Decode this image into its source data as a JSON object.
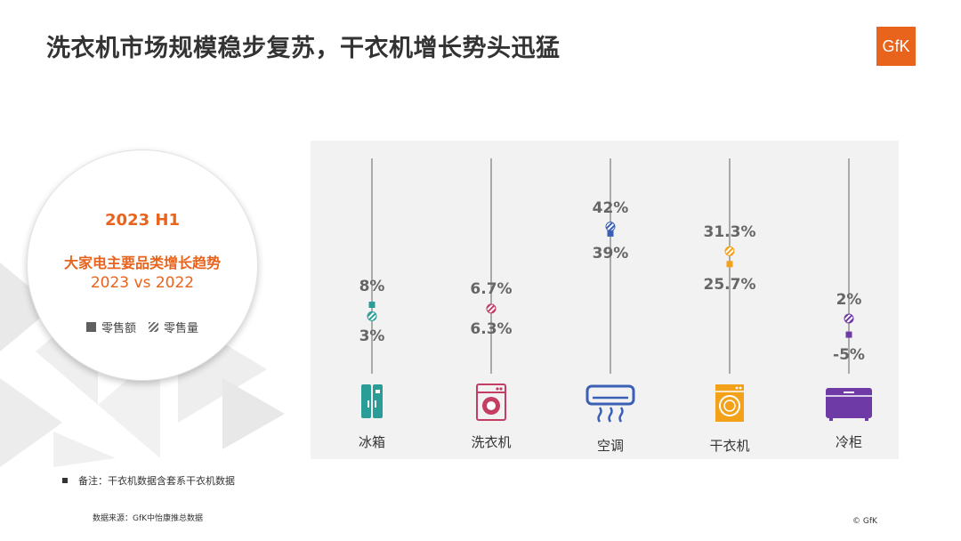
{
  "header": {
    "title": "洗衣机市场规模稳步复苏，干衣机增长势头迅猛",
    "logo": "GfK"
  },
  "summary": {
    "period": "2023 H1",
    "subtitle": "大家电主要品类增长趋势",
    "comparison": "2023 vs 2022",
    "legend": {
      "value": "零售额",
      "volume": "零售量"
    }
  },
  "chart_data": {
    "type": "scatter",
    "title": "",
    "xlabel": "",
    "ylabel": "",
    "categories": [
      "冰箱",
      "洗衣机",
      "空调",
      "干衣机",
      "冷柜"
    ],
    "series": [
      {
        "name": "零售额",
        "values": [
          8,
          6.7,
          39,
          25.7,
          -5
        ],
        "labels": [
          "8%",
          "6.7%",
          "39%",
          "25.7%",
          "-5%"
        ]
      },
      {
        "name": "零售量",
        "values": [
          3,
          6.3,
          42,
          31.3,
          2
        ],
        "labels": [
          "3%",
          "6.3%",
          "42%",
          "31.3%",
          "2%"
        ]
      }
    ],
    "colors": [
      "#2a9d96",
      "#c43d63",
      "#3a5fb5",
      "#f4a11a",
      "#6e3aa6"
    ],
    "icons": [
      "fridge-icon",
      "washing-machine-icon",
      "air-conditioner-icon",
      "dryer-icon",
      "freezer-icon"
    ],
    "ylim": [
      -10,
      50
    ],
    "grid": false
  },
  "footer": {
    "note": "备注：干衣机数据含套系干衣机数据",
    "source": "数据来源：GfK中怡康推总数据",
    "copyright": "© GfK"
  }
}
